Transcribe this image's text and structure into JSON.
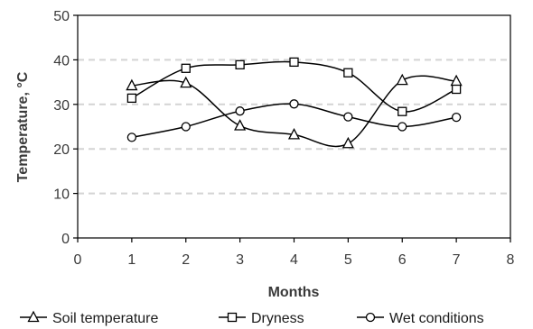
{
  "chart_data": {
    "type": "line",
    "title": "",
    "xlabel": "Months",
    "ylabel": "Temperature, °C",
    "xlim": [
      0,
      8
    ],
    "ylim": [
      0,
      50
    ],
    "xticks": [
      0,
      1,
      2,
      3,
      4,
      5,
      6,
      7,
      8
    ],
    "yticks": [
      0,
      10,
      20,
      30,
      40,
      50
    ],
    "grid": "horizontal-dashed",
    "legend_position": "bottom",
    "x": [
      1,
      2,
      3,
      4,
      5,
      6,
      7
    ],
    "series": [
      {
        "name": "Soil temperature",
        "marker": "triangle",
        "values": [
          34.2,
          34.8,
          25.2,
          23.2,
          21.2,
          35.4,
          35.2
        ]
      },
      {
        "name": "Dryness",
        "marker": "square",
        "values": [
          31.4,
          38.1,
          38.9,
          39.5,
          37.1,
          28.4,
          33.4
        ]
      },
      {
        "name": "Wet conditions",
        "marker": "circle",
        "values": [
          22.6,
          25.0,
          28.5,
          30.1,
          27.2,
          25.0,
          27.1
        ]
      }
    ]
  }
}
